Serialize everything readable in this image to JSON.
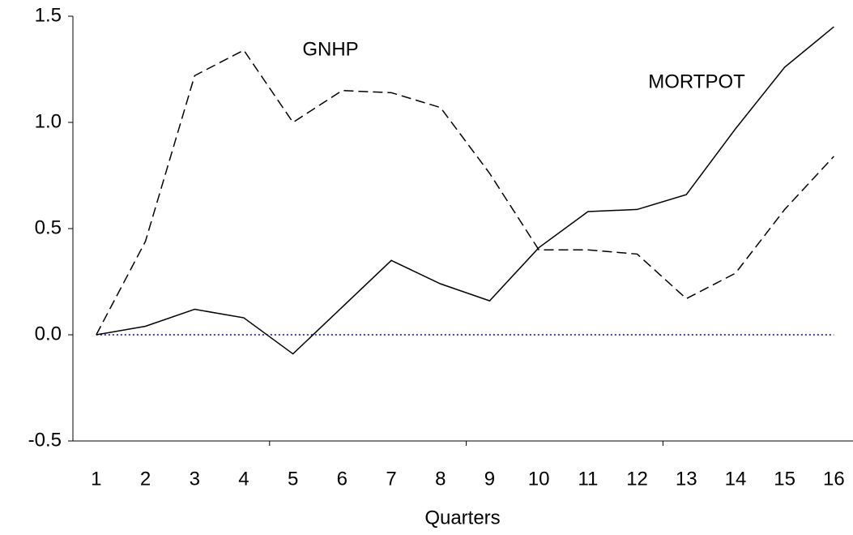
{
  "chart_data": {
    "type": "line",
    "x_label": "Quarters",
    "categories": [
      "1",
      "2",
      "3",
      "4",
      "5",
      "6",
      "7",
      "8",
      "9",
      "10",
      "11",
      "12",
      "13",
      "14",
      "15",
      "16"
    ],
    "series": [
      {
        "name": "GNHP",
        "color": "#000000",
        "dash": "dashed",
        "values": [
          0,
          0.44,
          1.22,
          1.34,
          1.0,
          1.15,
          1.14,
          1.07,
          0.76,
          0.4,
          0.4,
          0.38,
          0.17,
          0.29,
          0.59,
          0.84
        ]
      },
      {
        "name": "MORTPOT",
        "color": "#000000",
        "dash": "solid",
        "values": [
          0,
          0.04,
          0.12,
          0.08,
          -0.09,
          0.13,
          0.35,
          0.24,
          0.16,
          0.41,
          0.58,
          0.59,
          0.66,
          0.97,
          1.26,
          1.45
        ]
      }
    ],
    "ylim": [
      -0.5,
      1.5
    ],
    "yticks": [
      {
        "value": -0.5,
        "label": "-0.5"
      },
      {
        "value": 0,
        "label": "0.0"
      },
      {
        "value": 0.5,
        "label": "0.5"
      },
      {
        "value": 1,
        "label": "1.0"
      },
      {
        "value": 1.5,
        "label": "1.5"
      }
    ],
    "zero_line_color": "#000099"
  }
}
